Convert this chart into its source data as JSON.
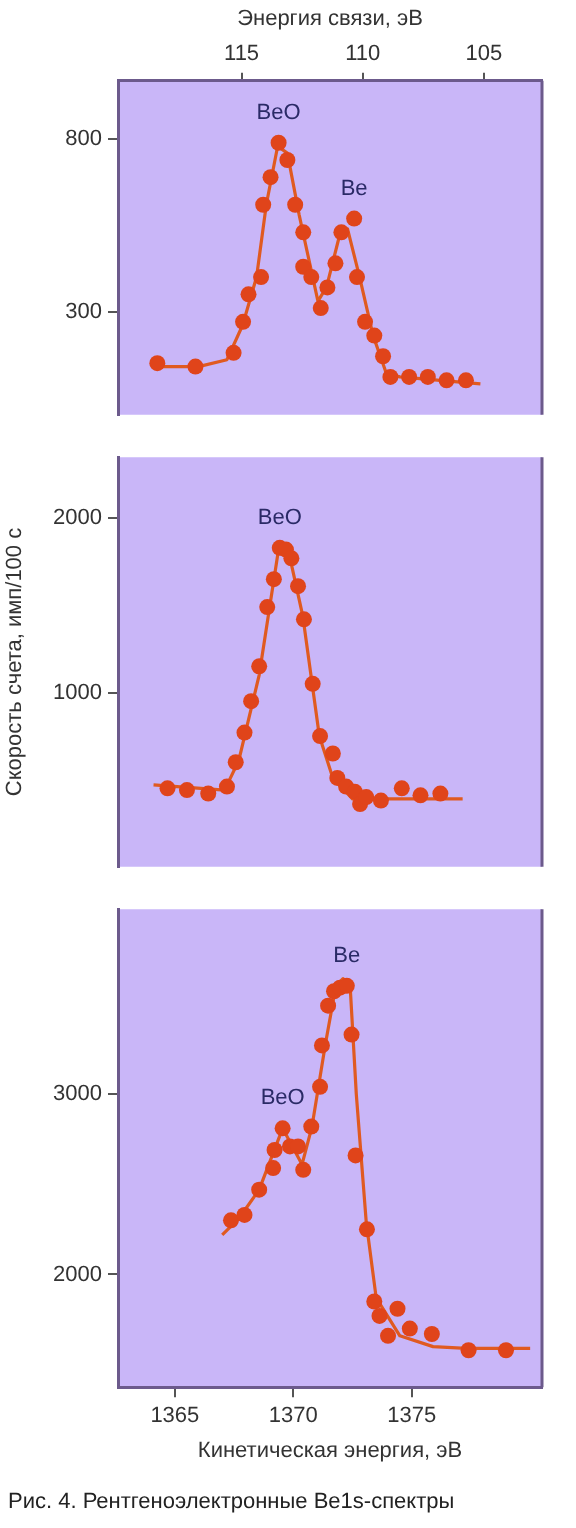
{
  "chart_data": [
    {
      "type": "scatter",
      "x2label": "Энергия связи, эВ",
      "xlim": [
        1362.6,
        1380.5
      ],
      "ylim": [
        0,
        970
      ],
      "yticks": [
        300,
        800
      ],
      "x2lim": [
        120.1,
        102.6
      ],
      "x2ticks": [
        115,
        110,
        105
      ],
      "tick_labels": "y",
      "grid": false,
      "legend": false,
      "marker": "circle",
      "series": [
        {
          "type": "scatter",
          "color": "#e0441a",
          "x": [
            1364.26,
            1365.87,
            1367.48,
            1367.88,
            1368.11,
            1368.64,
            1368.73,
            1369.04,
            1369.38,
            1369.75,
            1370.08,
            1370.42,
            1370.42,
            1370.76,
            1371.16,
            1371.44,
            1371.78,
            1372.03,
            1372.57,
            1372.69,
            1373.03,
            1373.42,
            1373.79,
            1374.1,
            1374.89,
            1375.68,
            1376.47,
            1377.29
          ],
          "values": [
            150,
            140,
            180,
            270,
            350,
            400,
            610,
            690,
            790,
            740,
            610,
            530,
            430,
            400,
            310,
            370,
            440,
            530,
            570,
            400,
            270,
            230,
            170,
            110,
            110,
            110,
            100,
            100
          ]
        },
        {
          "type": "line",
          "color": "#e05a20",
          "marker": "none",
          "x": [
            1364.1,
            1366,
            1367.2,
            1367.86,
            1368.45,
            1368.86,
            1369.34,
            1369.75,
            1370.25,
            1371.04,
            1371.4,
            1371.95,
            1372.29,
            1372.8,
            1373.37,
            1373.93,
            1374.5,
            1377.9
          ],
          "values": [
            140,
            140,
            160,
            260,
            400,
            610,
            780,
            760,
            580,
            330,
            370,
            520,
            540,
            400,
            230,
            120,
            110,
            90
          ]
        }
      ],
      "annotations": [
        {
          "text": "BeO",
          "x": 1369.38,
          "y": 790
        },
        {
          "text": "Be",
          "x": 1372.57,
          "y": 570
        }
      ]
    },
    {
      "type": "scatter",
      "ylabel": "Скорость счета, имп/100 с",
      "xlim": [
        1362.6,
        1380.5
      ],
      "ylim": [
        0,
        2350
      ],
      "yticks": [
        1000,
        2000
      ],
      "tick_labels": "y",
      "grid": false,
      "legend": false,
      "marker": "circle",
      "series": [
        {
          "type": "scatter",
          "color": "#e0441a",
          "x": [
            1364.69,
            1365.51,
            1366.41,
            1367.2,
            1367.57,
            1367.94,
            1368.22,
            1368.56,
            1368.9,
            1369.18,
            1369.43,
            1369.69,
            1369.92,
            1370.2,
            1370.45,
            1370.82,
            1371.13,
            1371.67,
            1371.86,
            1372.23,
            1372.6,
            1372.82,
            1373.08,
            1373.7,
            1374.58,
            1375.37,
            1376.21
          ],
          "values": [
            450,
            440,
            420,
            460,
            600,
            770,
            950,
            1150,
            1490,
            1650,
            1830,
            1820,
            1770,
            1610,
            1420,
            1050,
            750,
            650,
            510,
            460,
            430,
            360,
            400,
            380,
            450,
            410,
            420
          ]
        },
        {
          "type": "line",
          "color": "#e05a20",
          "marker": "none",
          "x": [
            1364.1,
            1367.1,
            1367.7,
            1368.56,
            1369.4,
            1369.8,
            1370.4,
            1371.1,
            1371.67,
            1372.5,
            1373.08,
            1377.15
          ],
          "values": [
            470,
            440,
            610,
            1100,
            1840,
            1810,
            1440,
            750,
            510,
            390,
            390,
            390
          ]
        }
      ],
      "annotations": [
        {
          "text": "BeO",
          "x": 1369.43,
          "y": 1830
        }
      ]
    },
    {
      "type": "scatter",
      "xlabel": "Кинетическая энергия, эВ",
      "xlim": [
        1362.6,
        1380.5
      ],
      "xticks": [
        1365,
        1370,
        1375
      ],
      "ylim": [
        1375,
        4025
      ],
      "yticks": [
        2000,
        3000
      ],
      "grid": false,
      "legend": false,
      "marker": "circle",
      "series": [
        {
          "type": "scatter",
          "color": "#e0441a",
          "x": [
            1367.37,
            1367.94,
            1368.56,
            1369.15,
            1369.21,
            1369.55,
            1369.86,
            1370.2,
            1370.42,
            1370.76,
            1371.13,
            1371.21,
            1371.47,
            1371.72,
            1371.97,
            1372.26,
            1372.46,
            1372.63,
            1373.11,
            1373.42,
            1373.64,
            1374.0,
            1374.4,
            1374.92,
            1375.85,
            1377.4,
            1378.98
          ],
          "values": [
            2300,
            2330,
            2470,
            2590,
            2690,
            2810,
            2710,
            2710,
            2580,
            2820,
            3040,
            3270,
            3490,
            3570,
            3590,
            3600,
            3330,
            2660,
            2250,
            1850,
            1770,
            1660,
            1810,
            1700,
            1670,
            1580,
            1580
          ]
        },
        {
          "type": "line",
          "color": "#e05a20",
          "marker": "none",
          "x": [
            1367.0,
            1367.7,
            1368.56,
            1369.55,
            1370.37,
            1370.79,
            1371.36,
            1371.8,
            1372.1,
            1372.4,
            1372.66,
            1373.08,
            1373.5,
            1374.5,
            1375.9,
            1377.3,
            1380.0
          ],
          "values": [
            2220,
            2310,
            2470,
            2810,
            2610,
            2820,
            3280,
            3600,
            3640,
            3600,
            3000,
            2290,
            1870,
            1660,
            1600,
            1590,
            1590
          ]
        }
      ],
      "annotations": [
        {
          "text": "Be",
          "x": 1372.26,
          "y": 3600
        },
        {
          "text": "BeO",
          "x": 1369.55,
          "y": 2810
        },
        "Рис. 4. Рентгеноэлектронные Be1s-спектры"
      ]
    }
  ]
}
